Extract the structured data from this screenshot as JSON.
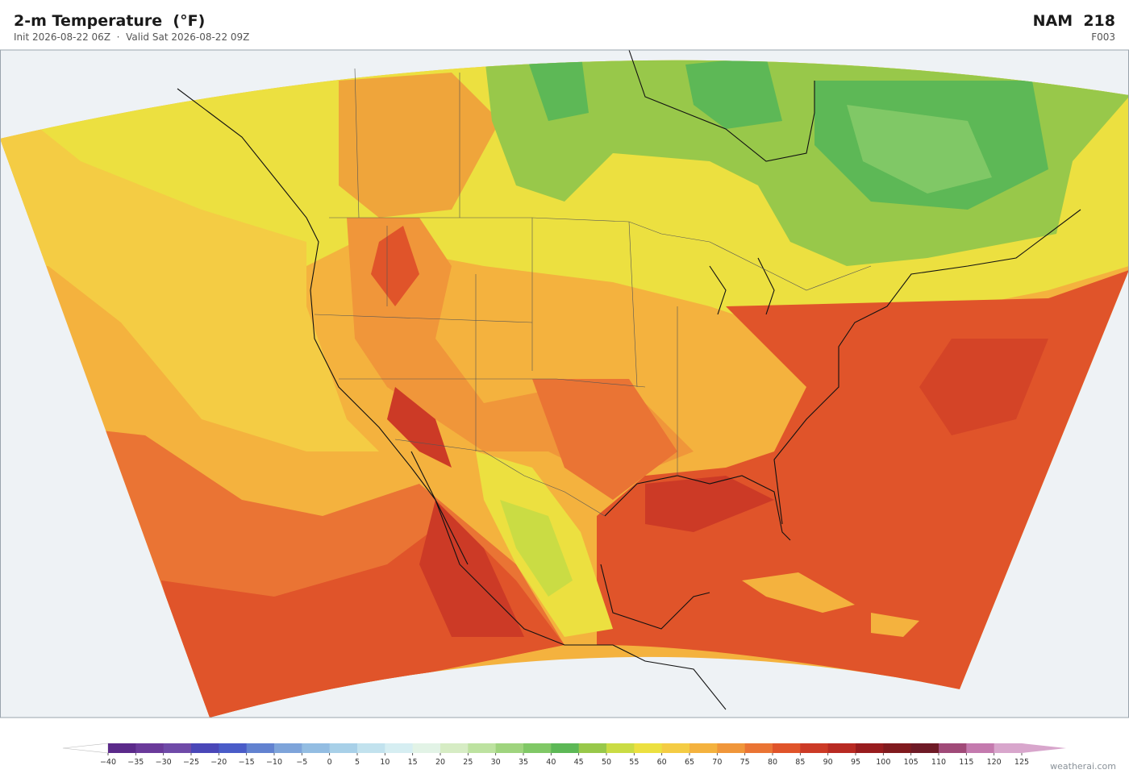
{
  "header": {
    "title": "2-m Temperature  (°F)",
    "subtitle": "Init 2026-08-22 06Z  ·  Valid Sat 2026-08-22 09Z",
    "model": "NAM  218",
    "forecast_hour": "F003"
  },
  "colorbar": {
    "ticks": [
      {
        "value": -40,
        "label": "−40"
      },
      {
        "value": -35,
        "label": "−35"
      },
      {
        "value": -30,
        "label": "−30"
      },
      {
        "value": -25,
        "label": "−25"
      },
      {
        "value": -20,
        "label": "−20"
      },
      {
        "value": -15,
        "label": "−15"
      },
      {
        "value": -10,
        "label": "−10"
      },
      {
        "value": -5,
        "label": "−5"
      },
      0,
      5,
      10,
      15,
      20,
      25,
      30,
      35,
      40,
      45,
      50,
      55,
      60,
      65,
      70,
      75,
      80,
      85,
      90,
      95,
      100,
      105,
      110,
      115,
      120,
      125
    ],
    "colors": [
      "#5b2a8a",
      "#6a3a9a",
      "#6f4aa8",
      "#4a47b8",
      "#4a5cc8",
      "#6282d0",
      "#7ea4da",
      "#93bde2",
      "#a8d0e8",
      "#c2e2ee",
      "#d6eef2",
      "#e2f3e6",
      "#d6ecc4",
      "#bde2a0",
      "#9fd47e",
      "#80c866",
      "#5db856",
      "#98c84a",
      "#cadc44",
      "#ece040",
      "#f4cc44",
      "#f4b23e",
      "#f0963a",
      "#ea7434",
      "#e0542a",
      "#cc3a26",
      "#b82a22",
      "#981c1e",
      "#801a1e",
      "#6e1a26",
      "#a04a78",
      "#c47aae",
      "#d8a6cc"
    ],
    "under_color": "#ffffff",
    "over_color": "#d8a6cc"
  },
  "watermark": "weatherai.com"
}
